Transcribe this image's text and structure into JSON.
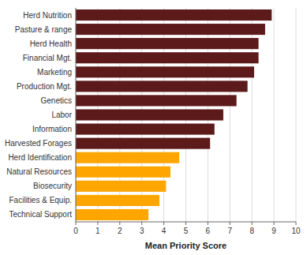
{
  "chart_data": {
    "type": "bar",
    "orientation": "horizontal",
    "categories": [
      "Technical Support",
      "Facilities & Equip.",
      "Biosecurity",
      "Natural Resources",
      "Herd Identification",
      "Harvested Forages",
      "Information",
      "Labor",
      "Genetics",
      "Production Mgt.",
      "Marketing",
      "Financial Mgt.",
      "Herd Health",
      "Pasture & range",
      "Herd Nutrition"
    ],
    "values": [
      3.3,
      3.8,
      4.1,
      4.3,
      4.7,
      6.1,
      6.3,
      6.7,
      7.3,
      7.8,
      8.1,
      8.3,
      8.3,
      8.6,
      8.9
    ],
    "colors": [
      "#FFA500",
      "#FFA500",
      "#FFA500",
      "#FFA500",
      "#FFA500",
      "#5C1A1A",
      "#5C1A1A",
      "#5C1A1A",
      "#5C1A1A",
      "#5C1A1A",
      "#5C1A1A",
      "#5C1A1A",
      "#5C1A1A",
      "#5C1A1A",
      "#5C1A1A"
    ],
    "xlabel": "Mean Priority Score",
    "xlim": [
      0,
      10
    ],
    "xticks": [
      0,
      1,
      2,
      3,
      4,
      5,
      6,
      7,
      8,
      9,
      10
    ],
    "grid": true
  }
}
